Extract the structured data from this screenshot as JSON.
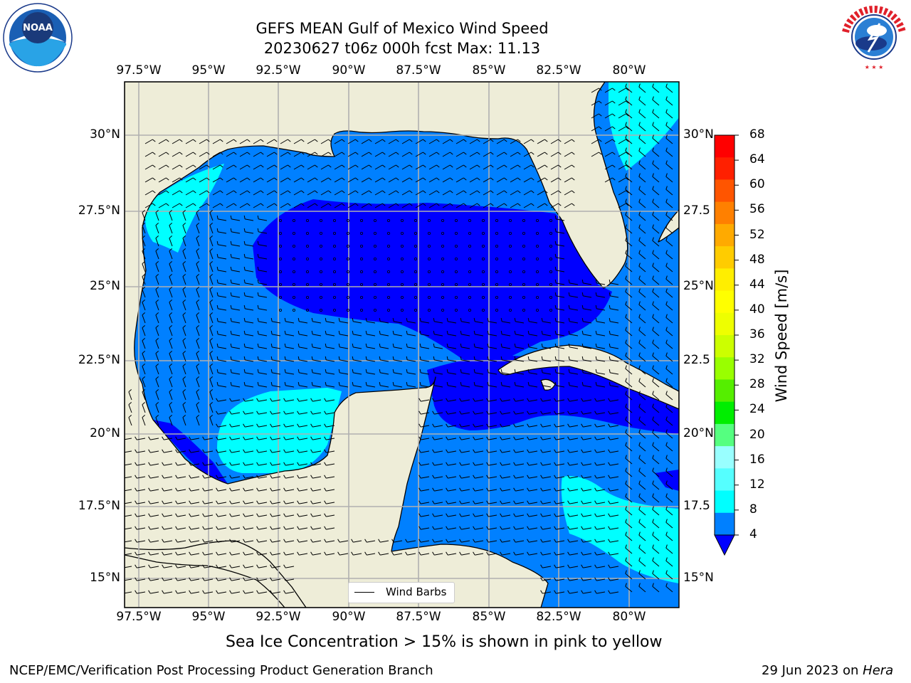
{
  "title": {
    "line1": "GEFS MEAN Gulf of Mexico Wind Speed",
    "line2": "20230627 t06z 000h fcst   Max: 11.13"
  },
  "logos": {
    "noaa": {
      "text": "NOAA",
      "ring_text": "NATIONAL OCEANIC AND ATMOSPHERIC ADMINISTRATION · U.S. DEPARTMENT OF COMMERCE"
    },
    "nws": {
      "ring_text": "NATIONAL WEATHER SERVICE"
    }
  },
  "map": {
    "lon_labels": [
      "97.5°W",
      "95°W",
      "92.5°W",
      "90°W",
      "87.5°W",
      "85°W",
      "82.5°W",
      "80°W"
    ],
    "lat_labels_left": [
      "30°N",
      "27.5°N",
      "25°N",
      "22.5°N",
      "20°N",
      "17.5°N",
      "15°N"
    ],
    "lat_labels_right": [
      "30°N",
      "27.5",
      "25°N",
      "22.5",
      "20°N",
      "17.5",
      "15°N"
    ],
    "legend": "Wind Barbs",
    "colors": {
      "land": "#eeedd8",
      "gridline": "#b0b0b0",
      "speed_lt4": "#0000ff",
      "speed_4_8": "#0080ff",
      "speed_8_12": "#00ffff"
    }
  },
  "colorbar": {
    "label": "Wind Speed [m/s]",
    "ticks": [
      "68",
      "64",
      "60",
      "56",
      "52",
      "48",
      "44",
      "40",
      "36",
      "32",
      "28",
      "24",
      "20",
      "16",
      "12",
      "8",
      "4"
    ],
    "colors": [
      "#ff0000",
      "#ff2000",
      "#ff5500",
      "#ff8000",
      "#ffaa00",
      "#ffcc00",
      "#ffee00",
      "#ffff00",
      "#eeff00",
      "#ccff00",
      "#99ff00",
      "#55ee00",
      "#00ee00",
      "#55ff80",
      "#99ffff",
      "#55ffff",
      "#00ffff",
      "#0080ff"
    ],
    "extend_color": "#0000ff"
  },
  "note": "Sea Ice Concentration > 15% is shown in pink to yellow",
  "footer": {
    "left": "NCEP/EMC/Verification Post Processing Product Generation Branch",
    "date": "29 Jun 2023 on ",
    "host": "Hera"
  }
}
